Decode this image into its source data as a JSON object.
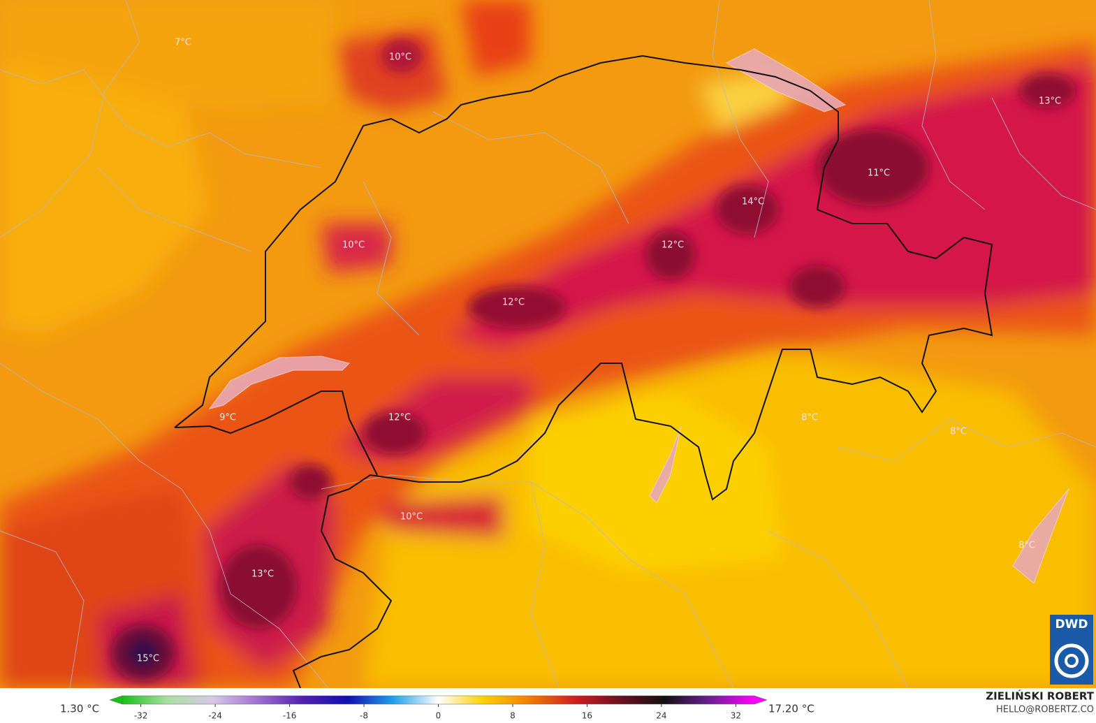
{
  "map": {
    "labels": [
      "7°C",
      "10°C",
      "13°C",
      "11°C",
      "14°C",
      "10°C",
      "12°C",
      "12°C",
      "12°C",
      "9°C",
      "8°C",
      "8°C",
      "10°C",
      "8°C",
      "13°C",
      "15°C"
    ]
  },
  "colorbar": {
    "min_label": "1.30 °C",
    "max_label": "17.20 °C",
    "lim": [
      -34,
      34
    ],
    "ticks": [
      -32,
      -24,
      -16,
      -8,
      0,
      8,
      16,
      24,
      32
    ],
    "colors": [
      "#18c018",
      "#a8e0a0",
      "#d8c8e8",
      "#a070d0",
      "#5020b0",
      "#1010b0",
      "#20a0e8",
      "#ffffff",
      "#ffd000",
      "#f08000",
      "#d02020",
      "#701020",
      "#101010",
      "#6a2090",
      "#ff00ff"
    ]
  },
  "credits": {
    "author": "ZIELIŃSKI ROBERT",
    "contact": "HELLO@ROBERTZ.CO",
    "logo": "DWD"
  }
}
